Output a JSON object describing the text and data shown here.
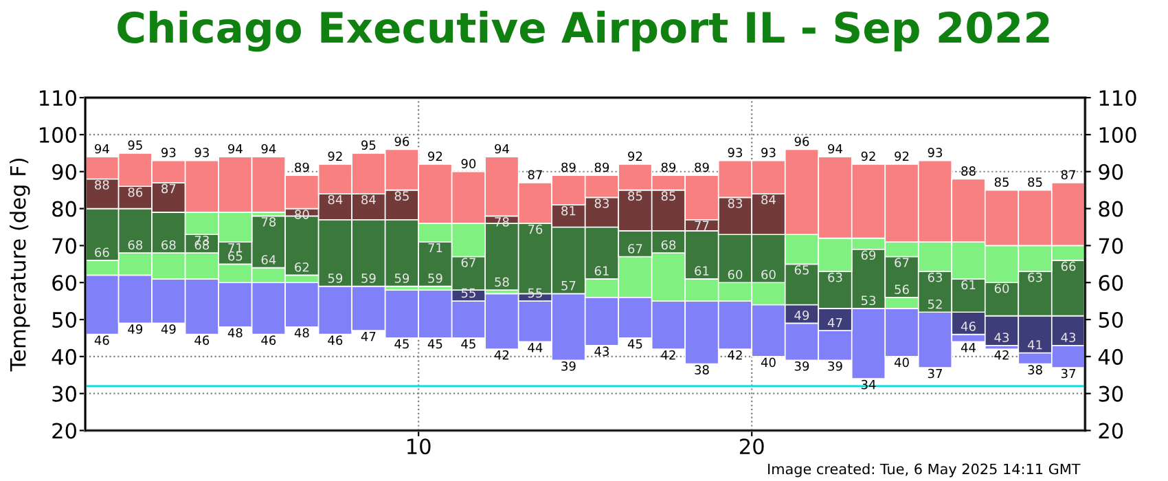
{
  "chart_data": {
    "type": "bar",
    "title": "Chicago Executive Airport IL - Sep 2022",
    "ylabel": "Temperature (deg F)",
    "x": [
      0.5,
      1.5,
      2.5,
      3.5,
      4.5,
      5.5,
      6.5,
      7.5,
      8.5,
      9.5,
      10.5,
      11.5,
      12.5,
      13.5,
      14.5,
      15.5,
      16.5,
      17.5,
      18.5,
      19.5,
      20.5,
      21.5,
      22.5,
      23.5,
      24.5,
      25.5,
      26.5,
      27.5,
      28.5,
      29.5
    ],
    "series": [
      {
        "color": "#8080f8",
        "base": [
          46,
          49,
          49,
          46,
          48,
          46,
          48,
          46,
          47,
          45,
          45,
          45,
          42,
          44,
          39,
          43,
          45,
          42,
          38,
          42,
          40,
          39,
          39,
          34,
          40,
          37,
          44,
          42,
          38,
          37
        ],
        "values": [
          16,
          13,
          12,
          15,
          12,
          14,
          12,
          13,
          12,
          13,
          13,
          10,
          15,
          11,
          18,
          13,
          11,
          13,
          17,
          13,
          14,
          10,
          8,
          19,
          13,
          15,
          2,
          1,
          3,
          6
        ]
      },
      {
        "color": "#3d3d7a",
        "base": [
          null,
          null,
          null,
          null,
          null,
          null,
          null,
          null,
          null,
          null,
          null,
          55,
          null,
          55,
          null,
          null,
          null,
          null,
          null,
          null,
          null,
          49,
          47,
          null,
          null,
          null,
          46,
          43,
          41,
          43
        ],
        "values": [
          null,
          null,
          null,
          null,
          null,
          null,
          null,
          null,
          null,
          null,
          null,
          3,
          null,
          2,
          null,
          null,
          null,
          null,
          null,
          null,
          null,
          5,
          6,
          null,
          null,
          null,
          6,
          8,
          10,
          8
        ]
      },
      {
        "color": "#80f080",
        "base": [
          62,
          62,
          61,
          61,
          60,
          60,
          60,
          null,
          null,
          58,
          58,
          null,
          57,
          null,
          null,
          56,
          56,
          55,
          55,
          55,
          54,
          null,
          null,
          null,
          53,
          null,
          null,
          null,
          null,
          null
        ],
        "values": [
          4,
          6,
          7,
          7,
          5,
          4,
          2,
          null,
          null,
          1,
          1,
          null,
          1,
          null,
          null,
          5,
          11,
          13,
          6,
          5,
          6,
          null,
          null,
          null,
          3,
          null,
          null,
          null,
          null,
          null
        ]
      },
      {
        "color": "#3b783b",
        "base": [
          66,
          68,
          68,
          68,
          65,
          64,
          62,
          59,
          59,
          59,
          59,
          58,
          58,
          57,
          57,
          61,
          67,
          68,
          61,
          60,
          60,
          54,
          53,
          53,
          56,
          52,
          52,
          51,
          51,
          51
        ],
        "values": [
          14,
          12,
          11,
          5,
          6,
          14,
          16,
          18,
          18,
          18,
          12,
          9,
          18,
          19,
          18,
          14,
          7,
          6,
          13,
          13,
          13,
          11,
          10,
          16,
          11,
          11,
          9,
          9,
          12,
          15
        ]
      },
      {
        "color": "#80f080",
        "base": [
          null,
          null,
          null,
          73,
          71,
          78,
          null,
          null,
          null,
          null,
          71,
          67,
          null,
          null,
          null,
          null,
          null,
          null,
          null,
          null,
          null,
          65,
          63,
          69,
          67,
          63,
          61,
          60,
          63,
          66
        ],
        "values": [
          null,
          null,
          null,
          6,
          8,
          1,
          null,
          null,
          null,
          null,
          5,
          9,
          null,
          null,
          null,
          null,
          null,
          null,
          null,
          null,
          null,
          8,
          9,
          3,
          4,
          8,
          10,
          10,
          7,
          4
        ]
      },
      {
        "color": "#733a3a",
        "base": [
          80,
          80,
          79,
          null,
          null,
          null,
          78,
          77,
          77,
          77,
          null,
          null,
          76,
          null,
          75,
          75,
          74,
          74,
          74,
          73,
          73,
          null,
          null,
          null,
          null,
          null,
          null,
          null,
          null,
          null
        ],
        "values": [
          8,
          6,
          8,
          null,
          null,
          null,
          2,
          7,
          7,
          8,
          null,
          null,
          2,
          null,
          6,
          8,
          11,
          11,
          3,
          10,
          11,
          null,
          null,
          null,
          null,
          null,
          null,
          null,
          null,
          null
        ]
      },
      {
        "color": "#f88080",
        "base": [
          88,
          86,
          87,
          79,
          79,
          79,
          80,
          84,
          84,
          85,
          76,
          76,
          78,
          76,
          81,
          83,
          85,
          85,
          77,
          83,
          84,
          73,
          72,
          72,
          71,
          71,
          71,
          70,
          70,
          70
        ],
        "values": [
          6,
          9,
          6,
          14,
          15,
          15,
          9,
          8,
          11,
          11,
          16,
          14,
          16,
          11,
          8,
          6,
          7,
          4,
          12,
          10,
          9,
          23,
          22,
          20,
          21,
          22,
          17,
          15,
          15,
          17
        ]
      }
    ],
    "annotations": [
      {
        "text": "94",
        "x": 0.5,
        "y": 94
      },
      {
        "text": "88",
        "x": 0.5,
        "y": 88
      },
      {
        "text": "66",
        "x": 0.5,
        "y": 66
      },
      {
        "text": "46",
        "x": 0.5,
        "y": 46
      },
      {
        "text": "95",
        "x": 1.5,
        "y": 95
      },
      {
        "text": "86",
        "x": 1.5,
        "y": 86
      },
      {
        "text": "68",
        "x": 1.5,
        "y": 68
      },
      {
        "text": "49",
        "x": 1.5,
        "y": 49
      },
      {
        "text": "93",
        "x": 2.5,
        "y": 93
      },
      {
        "text": "87",
        "x": 2.5,
        "y": 87
      },
      {
        "text": "68",
        "x": 2.5,
        "y": 68
      },
      {
        "text": "49",
        "x": 2.5,
        "y": 49
      },
      {
        "text": "93",
        "x": 3.5,
        "y": 93
      },
      {
        "text": "73",
        "x": 3.5,
        "y": 73
      },
      {
        "text": "68",
        "x": 3.5,
        "y": 68
      },
      {
        "text": "46",
        "x": 3.5,
        "y": 46
      },
      {
        "text": "94",
        "x": 4.5,
        "y": 94
      },
      {
        "text": "71",
        "x": 4.5,
        "y": 71
      },
      {
        "text": "65",
        "x": 4.5,
        "y": 65
      },
      {
        "text": "48",
        "x": 4.5,
        "y": 48
      },
      {
        "text": "94",
        "x": 5.5,
        "y": 94
      },
      {
        "text": "78",
        "x": 5.5,
        "y": 78
      },
      {
        "text": "64",
        "x": 5.5,
        "y": 64
      },
      {
        "text": "46",
        "x": 5.5,
        "y": 46
      },
      {
        "text": "89",
        "x": 6.5,
        "y": 89
      },
      {
        "text": "80",
        "x": 6.5,
        "y": 80
      },
      {
        "text": "62",
        "x": 6.5,
        "y": 62
      },
      {
        "text": "48",
        "x": 6.5,
        "y": 48
      },
      {
        "text": "92",
        "x": 7.5,
        "y": 92
      },
      {
        "text": "84",
        "x": 7.5,
        "y": 84
      },
      {
        "text": "59",
        "x": 7.5,
        "y": 59
      },
      {
        "text": "46",
        "x": 7.5,
        "y": 46
      },
      {
        "text": "95",
        "x": 8.5,
        "y": 95
      },
      {
        "text": "84",
        "x": 8.5,
        "y": 84
      },
      {
        "text": "59",
        "x": 8.5,
        "y": 59
      },
      {
        "text": "47",
        "x": 8.5,
        "y": 47
      },
      {
        "text": "96",
        "x": 9.5,
        "y": 96
      },
      {
        "text": "85",
        "x": 9.5,
        "y": 85
      },
      {
        "text": "59",
        "x": 9.5,
        "y": 59
      },
      {
        "text": "45",
        "x": 9.5,
        "y": 45
      },
      {
        "text": "92",
        "x": 10.5,
        "y": 92
      },
      {
        "text": "71",
        "x": 10.5,
        "y": 71
      },
      {
        "text": "59",
        "x": 10.5,
        "y": 59
      },
      {
        "text": "45",
        "x": 10.5,
        "y": 45
      },
      {
        "text": "90",
        "x": 11.5,
        "y": 90
      },
      {
        "text": "67",
        "x": 11.5,
        "y": 67
      },
      {
        "text": "55",
        "x": 11.5,
        "y": 55
      },
      {
        "text": "45",
        "x": 11.5,
        "y": 45
      },
      {
        "text": "94",
        "x": 12.5,
        "y": 94
      },
      {
        "text": "78",
        "x": 12.5,
        "y": 78
      },
      {
        "text": "58",
        "x": 12.5,
        "y": 58
      },
      {
        "text": "42",
        "x": 12.5,
        "y": 42
      },
      {
        "text": "87",
        "x": 13.5,
        "y": 87
      },
      {
        "text": "76",
        "x": 13.5,
        "y": 76
      },
      {
        "text": "55",
        "x": 13.5,
        "y": 55
      },
      {
        "text": "44",
        "x": 13.5,
        "y": 44
      },
      {
        "text": "89",
        "x": 14.5,
        "y": 89
      },
      {
        "text": "81",
        "x": 14.5,
        "y": 81
      },
      {
        "text": "57",
        "x": 14.5,
        "y": 57
      },
      {
        "text": "39",
        "x": 14.5,
        "y": 39
      },
      {
        "text": "89",
        "x": 15.5,
        "y": 89
      },
      {
        "text": "83",
        "x": 15.5,
        "y": 83
      },
      {
        "text": "61",
        "x": 15.5,
        "y": 61
      },
      {
        "text": "43",
        "x": 15.5,
        "y": 43
      },
      {
        "text": "92",
        "x": 16.5,
        "y": 92
      },
      {
        "text": "85",
        "x": 16.5,
        "y": 85
      },
      {
        "text": "67",
        "x": 16.5,
        "y": 67
      },
      {
        "text": "45",
        "x": 16.5,
        "y": 45
      },
      {
        "text": "89",
        "x": 17.5,
        "y": 89
      },
      {
        "text": "85",
        "x": 17.5,
        "y": 85
      },
      {
        "text": "68",
        "x": 17.5,
        "y": 68
      },
      {
        "text": "42",
        "x": 17.5,
        "y": 42
      },
      {
        "text": "89",
        "x": 18.5,
        "y": 89
      },
      {
        "text": "77",
        "x": 18.5,
        "y": 77
      },
      {
        "text": "61",
        "x": 18.5,
        "y": 61
      },
      {
        "text": "38",
        "x": 18.5,
        "y": 38
      },
      {
        "text": "93",
        "x": 19.5,
        "y": 93
      },
      {
        "text": "83",
        "x": 19.5,
        "y": 83
      },
      {
        "text": "60",
        "x": 19.5,
        "y": 60
      },
      {
        "text": "42",
        "x": 19.5,
        "y": 42
      },
      {
        "text": "93",
        "x": 20.5,
        "y": 93
      },
      {
        "text": "84",
        "x": 20.5,
        "y": 84
      },
      {
        "text": "60",
        "x": 20.5,
        "y": 60
      },
      {
        "text": "40",
        "x": 20.5,
        "y": 40
      },
      {
        "text": "96",
        "x": 21.5,
        "y": 96
      },
      {
        "text": "65",
        "x": 21.5,
        "y": 65
      },
      {
        "text": "49",
        "x": 21.5,
        "y": 49
      },
      {
        "text": "39",
        "x": 21.5,
        "y": 39
      },
      {
        "text": "94",
        "x": 22.5,
        "y": 94
      },
      {
        "text": "63",
        "x": 22.5,
        "y": 63
      },
      {
        "text": "47",
        "x": 22.5,
        "y": 47
      },
      {
        "text": "39",
        "x": 22.5,
        "y": 39
      },
      {
        "text": "92",
        "x": 23.5,
        "y": 92
      },
      {
        "text": "69",
        "x": 23.5,
        "y": 69
      },
      {
        "text": "53",
        "x": 23.5,
        "y": 53
      },
      {
        "text": "34",
        "x": 23.5,
        "y": 34
      },
      {
        "text": "92",
        "x": 24.5,
        "y": 92
      },
      {
        "text": "67",
        "x": 24.5,
        "y": 67
      },
      {
        "text": "56",
        "x": 24.5,
        "y": 56
      },
      {
        "text": "40",
        "x": 24.5,
        "y": 40
      },
      {
        "text": "93",
        "x": 25.5,
        "y": 93
      },
      {
        "text": "63",
        "x": 25.5,
        "y": 63
      },
      {
        "text": "52",
        "x": 25.5,
        "y": 52
      },
      {
        "text": "37",
        "x": 25.5,
        "y": 37
      },
      {
        "text": "88",
        "x": 26.5,
        "y": 88
      },
      {
        "text": "61",
        "x": 26.5,
        "y": 61
      },
      {
        "text": "46",
        "x": 26.5,
        "y": 46
      },
      {
        "text": "44",
        "x": 26.5,
        "y": 44
      },
      {
        "text": "85",
        "x": 27.5,
        "y": 85
      },
      {
        "text": "60",
        "x": 27.5,
        "y": 60
      },
      {
        "text": "43",
        "x": 27.5,
        "y": 43
      },
      {
        "text": "42",
        "x": 27.5,
        "y": 42
      },
      {
        "text": "85",
        "x": 28.5,
        "y": 85
      },
      {
        "text": "63",
        "x": 28.5,
        "y": 63
      },
      {
        "text": "41",
        "x": 28.5,
        "y": 41
      },
      {
        "text": "38",
        "x": 28.5,
        "y": 38
      },
      {
        "text": "87",
        "x": 29.5,
        "y": 87
      },
      {
        "text": "66",
        "x": 29.5,
        "y": 66
      },
      {
        "text": "43",
        "x": 29.5,
        "y": 43
      },
      {
        "text": "37",
        "x": 29.5,
        "y": 37
      },
      "Image created: Tue, 6 May 2025 14:11 GMT"
    ],
    "ref_lines": [
      {
        "axis": "y",
        "value": 32,
        "color": "#00e0e0"
      }
    ],
    "xlim": [
      0,
      30
    ],
    "xticks": [
      10,
      20
    ],
    "ylim": [
      20,
      110
    ],
    "yticks": [
      20,
      30,
      40,
      50,
      60,
      70,
      80,
      90,
      100,
      110
    ],
    "y2lim": [
      20,
      110
    ],
    "y2ticks": [
      20,
      30,
      40,
      50,
      60,
      70,
      80,
      90,
      100,
      110
    ],
    "grid": true,
    "line_style": "dotted"
  }
}
